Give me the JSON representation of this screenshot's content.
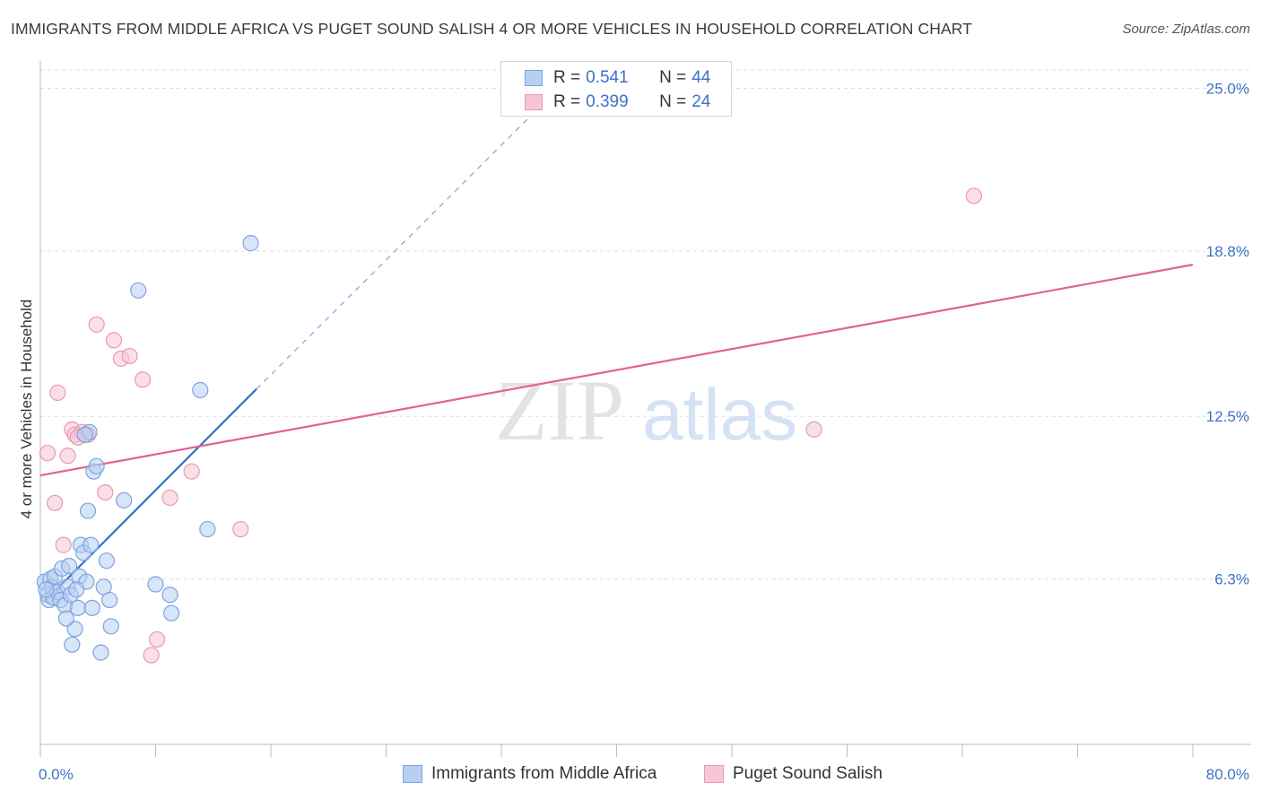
{
  "title": "IMMIGRANTS FROM MIDDLE AFRICA VS PUGET SOUND SALISH 4 OR MORE VEHICLES IN HOUSEHOLD CORRELATION CHART",
  "source": "Source: ZipAtlas.com",
  "watermark": {
    "zip": "ZIP",
    "atlas": "atlas"
  },
  "colors": {
    "blue_fill": "#b7cff2",
    "blue_stroke": "#7ea3de",
    "blue_line": "#2f72d0",
    "pink_fill": "#f7c5d4",
    "pink_stroke": "#e79ab2",
    "pink_line": "#e0648e",
    "tick_text": "#3e72c4",
    "grid": "#dddddd"
  },
  "legend": {
    "rows": [
      {
        "r_label": "R =",
        "r_value": "0.541",
        "n_label": "N =",
        "n_value": "44"
      },
      {
        "r_label": "R =",
        "r_value": "0.399",
        "n_label": "N =",
        "n_value": "24"
      }
    ]
  },
  "chart_data": {
    "type": "scatter",
    "title": "IMMIGRANTS FROM MIDDLE AFRICA VS PUGET SOUND SALISH 4 OR MORE VEHICLES IN HOUSEHOLD CORRELATION CHART",
    "xlabel": "",
    "ylabel": "4 or more Vehicles in Household",
    "xlim": [
      0,
      80
    ],
    "ylim": [
      0,
      25.7
    ],
    "x_tick_labels": [
      "0.0%",
      "80.0%"
    ],
    "y_ticks": [
      6.3,
      12.5,
      18.8,
      25.0
    ],
    "y_tick_labels": [
      "6.3%",
      "12.5%",
      "18.8%",
      "25.0%"
    ],
    "legend_position": "top-center",
    "series": [
      {
        "name": "Immigrants from Middle Africa",
        "color": "blue",
        "R": 0.541,
        "N": 44,
        "points": [
          [
            0.3,
            6.2
          ],
          [
            0.5,
            5.7
          ],
          [
            0.6,
            5.5
          ],
          [
            0.7,
            6.3
          ],
          [
            0.8,
            6.0
          ],
          [
            0.9,
            5.6
          ],
          [
            1.0,
            6.4
          ],
          [
            1.2,
            5.8
          ],
          [
            1.4,
            5.5
          ],
          [
            1.5,
            6.7
          ],
          [
            1.7,
            5.3
          ],
          [
            1.9,
            6.0
          ],
          [
            2.0,
            6.8
          ],
          [
            2.1,
            5.7
          ],
          [
            2.2,
            3.8
          ],
          [
            2.4,
            4.4
          ],
          [
            2.6,
            5.2
          ],
          [
            2.7,
            6.4
          ],
          [
            2.8,
            7.6
          ],
          [
            3.0,
            7.3
          ],
          [
            3.2,
            6.2
          ],
          [
            3.3,
            8.9
          ],
          [
            3.4,
            11.9
          ],
          [
            3.5,
            7.6
          ],
          [
            3.6,
            5.2
          ],
          [
            3.7,
            10.4
          ],
          [
            3.9,
            10.6
          ],
          [
            4.2,
            3.5
          ],
          [
            4.4,
            6.0
          ],
          [
            4.6,
            7.0
          ],
          [
            4.8,
            5.5
          ],
          [
            4.9,
            4.5
          ],
          [
            5.8,
            9.3
          ],
          [
            6.8,
            17.3
          ],
          [
            8.0,
            6.1
          ],
          [
            9.0,
            5.7
          ],
          [
            9.1,
            5.0
          ],
          [
            11.1,
            13.5
          ],
          [
            11.6,
            8.2
          ],
          [
            14.6,
            19.1
          ],
          [
            0.4,
            5.9
          ],
          [
            1.8,
            4.8
          ],
          [
            3.1,
            11.8
          ],
          [
            2.5,
            5.9
          ]
        ],
        "trendline": {
          "x": [
            0.3,
            15.0
          ],
          "y": [
            5.45,
            13.54
          ],
          "dashed_extension_to": [
            34.5,
            24.2
          ]
        }
      },
      {
        "name": "Puget Sound Salish",
        "color": "pink",
        "R": 0.399,
        "N": 24,
        "points": [
          [
            0.5,
            11.1
          ],
          [
            1.0,
            9.2
          ],
          [
            1.2,
            13.4
          ],
          [
            1.6,
            7.6
          ],
          [
            1.9,
            11.0
          ],
          [
            2.2,
            12.0
          ],
          [
            2.4,
            11.8
          ],
          [
            2.9,
            11.9
          ],
          [
            3.1,
            11.8
          ],
          [
            3.9,
            16.0
          ],
          [
            4.5,
            9.6
          ],
          [
            5.1,
            15.4
          ],
          [
            5.6,
            14.7
          ],
          [
            6.2,
            14.8
          ],
          [
            7.1,
            13.9
          ],
          [
            7.7,
            3.4
          ],
          [
            8.1,
            4.0
          ],
          [
            9.0,
            9.4
          ],
          [
            10.5,
            10.4
          ],
          [
            13.9,
            8.2
          ],
          [
            53.7,
            12.0
          ],
          [
            64.8,
            20.9
          ],
          [
            3.3,
            11.8
          ],
          [
            2.6,
            11.7
          ]
        ],
        "trendline": {
          "x": [
            0.0,
            80.0
          ],
          "y": [
            10.25,
            18.28
          ]
        }
      }
    ]
  }
}
